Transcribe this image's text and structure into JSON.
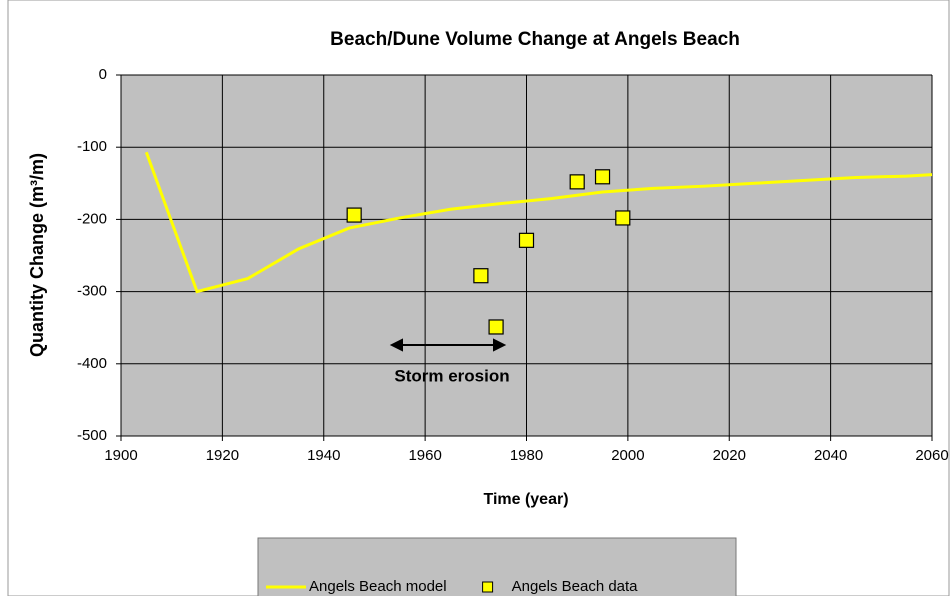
{
  "chart_data": {
    "type": "line",
    "title": "Beach/Dune Volume Change at Angels Beach",
    "x_label": "Time (year)",
    "y_label": "Quantity Change (m³/m)",
    "annotation": "Storm erosion",
    "xlim": [
      1900,
      2060
    ],
    "xticks": [
      1900,
      1920,
      1940,
      1960,
      1980,
      2000,
      2020,
      2040,
      2060
    ],
    "ylim": [
      -500,
      0
    ],
    "yticks": [
      0,
      -100,
      -200,
      -300,
      -400,
      -500
    ],
    "grid": true,
    "legend": "bottom",
    "series": [
      {
        "name": "Angels Beach model",
        "type": "line",
        "color": "#ffff00",
        "x": [
          1905,
          1915,
          1925,
          1935,
          1945,
          1955,
          1965,
          1975,
          1985,
          1995,
          2005,
          2015,
          2025,
          2035,
          2045,
          2055,
          2060
        ],
        "values": [
          -107,
          -300,
          -282,
          -241,
          -212,
          -198,
          -186,
          -178,
          -171,
          -162,
          -157,
          -154,
          -150,
          -146,
          -142,
          -140,
          -138
        ]
      },
      {
        "name": "Angels Beach data",
        "type": "scatter",
        "color": "#ffff00",
        "x": [
          1946,
          1971,
          1974,
          1980,
          1990,
          1995,
          1999
        ],
        "values": [
          -194,
          -278,
          -349,
          -229,
          -148,
          -141,
          -198
        ]
      }
    ]
  }
}
